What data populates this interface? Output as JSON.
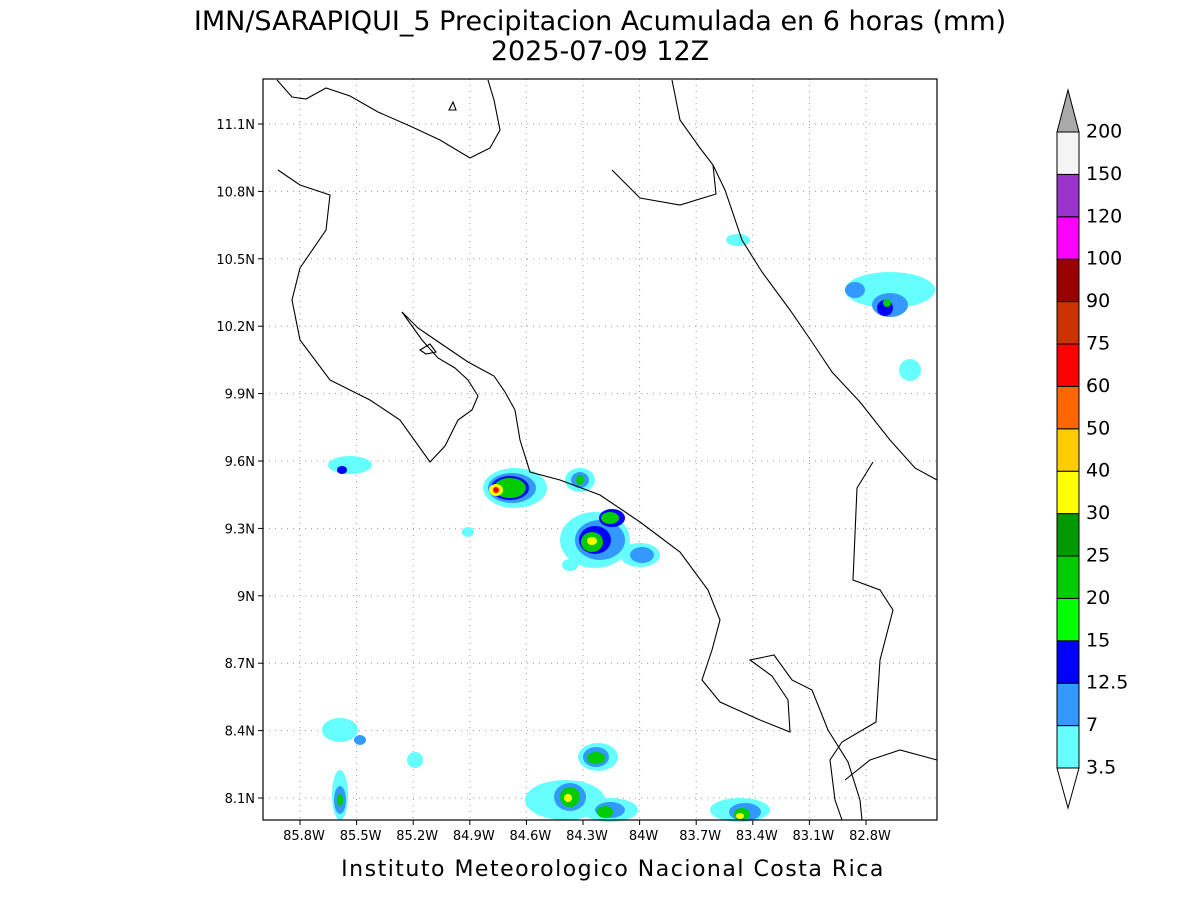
{
  "title": [
    "IMN/SARAPIQUI_5 Precipitacion Acumulada en 6 horas (mm)",
    "2025-07-09 12Z"
  ],
  "lat_ticks": [
    "11.1N",
    "10.8N",
    "10.5N",
    "10.2N",
    "9.9N",
    "9.6N",
    "9.3N",
    "9N",
    "8.7N",
    "8.4N",
    "8.1N"
  ],
  "lon_ticks": [
    "85.8W",
    "85.5W",
    "85.2W",
    "84.9W",
    "84.6W",
    "84.3W",
    "84W",
    "83.7W",
    "83.4W",
    "83.1W",
    "82.8W"
  ],
  "colorbar": {
    "levels": [
      3.5,
      7,
      12.5,
      15,
      20,
      25,
      30,
      40,
      50,
      60,
      75,
      90,
      100,
      120,
      150,
      200
    ],
    "colors": [
      "#66ffff",
      "#3399ff",
      "#0000ff",
      "#00ff00",
      "#00cc00",
      "#009900",
      "#ffff00",
      "#ffcc00",
      "#ff6600",
      "#ff0000",
      "#cc3300",
      "#990000",
      "#ff00ff",
      "#9933cc",
      "#f5f5f5"
    ],
    "over_color": "#aaaaaa",
    "under_color": "#ffffff"
  },
  "footer": "Instituto Meteorologico Nacional Costa Rica"
}
